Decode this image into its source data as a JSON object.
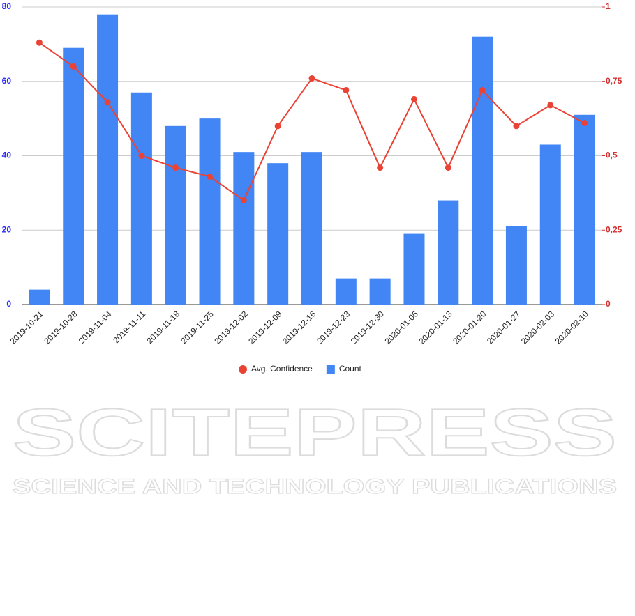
{
  "chart_data": {
    "type": "bar",
    "categories": [
      "2019-10-21",
      "2019-10-28",
      "2019-11-04",
      "2019-11-11",
      "2019-11-18",
      "2019-11-25",
      "2019-12-02",
      "2019-12-09",
      "2019-12-16",
      "2019-12-23",
      "2019-12-30",
      "2020-01-06",
      "2020-01-13",
      "2020-01-20",
      "2020-01-27",
      "2020-02-03",
      "2020-02-10"
    ],
    "series": [
      {
        "name": "Avg. Confidence",
        "type": "line",
        "axis": "y2",
        "color": "#ea4335",
        "values": [
          0.88,
          0.8,
          0.68,
          0.5,
          0.46,
          0.43,
          0.35,
          0.6,
          0.76,
          0.72,
          0.46,
          0.69,
          0.46,
          0.72,
          0.6,
          0.67,
          0.61
        ]
      },
      {
        "name": "Count",
        "type": "bar",
        "axis": "y",
        "color": "#4285f4",
        "values": [
          4,
          69,
          78,
          57,
          48,
          50,
          41,
          38,
          41,
          7,
          7,
          19,
          28,
          72,
          21,
          43,
          51
        ]
      }
    ],
    "ylim": [
      0,
      80
    ],
    "yticks": [
      0,
      20,
      40,
      60,
      80
    ],
    "y2lim": [
      0,
      1
    ],
    "y2ticks": [
      0,
      {
        "value": 0.25,
        "label": "0,25"
      },
      {
        "value": 0.5,
        "label": "0,5"
      },
      {
        "value": 0.75,
        "label": "0,75"
      },
      1
    ],
    "grid": true,
    "legend": "bottom"
  },
  "watermark": {
    "title": "SCITEPRESS",
    "subtitle": "SCIENCE AND TECHNOLOGY PUBLICATIONS"
  }
}
